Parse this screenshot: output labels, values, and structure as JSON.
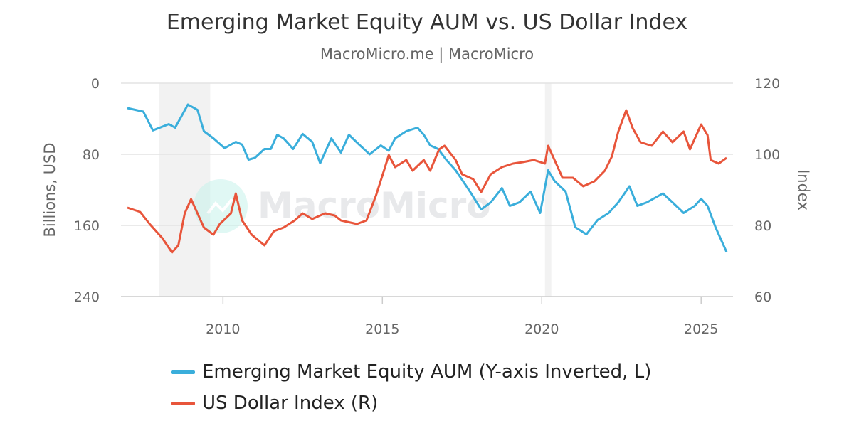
{
  "chart_data": {
    "type": "line",
    "title": "Emerging Market Equity AUM vs. US Dollar Index",
    "subtitle": "MacroMicro.me | MacroMicro",
    "watermark": "MacroMicro",
    "x_ticks": [
      "2010",
      "2015",
      "2020",
      "2025"
    ],
    "x_range": [
      2006.8,
      2026.0
    ],
    "y_left": {
      "label": "Billions, USD",
      "ticks": [
        "0",
        "80",
        "160",
        "240"
      ],
      "range": [
        0,
        240
      ],
      "inverted": true
    },
    "y_right": {
      "label": "Index",
      "ticks": [
        "120",
        "100",
        "80",
        "60"
      ],
      "range": [
        60,
        120
      ]
    },
    "grid": true,
    "legend_position": "bottom",
    "recessions": [
      [
        2008.0,
        2009.6
      ],
      [
        2020.1,
        2020.3
      ]
    ],
    "series": [
      {
        "name": "Emerging Market Equity AUM (Y-axis Inverted, L)",
        "axis": "left",
        "color": "#3aaedb",
        "x": [
          2007.0,
          2007.5,
          2007.8,
          2008.3,
          2008.5,
          2008.9,
          2009.2,
          2009.4,
          2009.7,
          2010.05,
          2010.4,
          2010.6,
          2010.8,
          2011.0,
          2011.3,
          2011.5,
          2011.7,
          2011.9,
          2012.2,
          2012.5,
          2012.8,
          2013.05,
          2013.4,
          2013.7,
          2013.95,
          2014.3,
          2014.6,
          2014.95,
          2015.2,
          2015.4,
          2015.75,
          2016.1,
          2016.3,
          2016.5,
          2016.75,
          2017.0,
          2017.3,
          2017.75,
          2018.1,
          2018.4,
          2018.75,
          2019.0,
          2019.3,
          2019.65,
          2019.95,
          2020.2,
          2020.4,
          2020.75,
          2021.05,
          2021.4,
          2021.75,
          2022.1,
          2022.4,
          2022.75,
          2023.0,
          2023.3,
          2023.8,
          2024.1,
          2024.45,
          2024.8,
          2025.0,
          2025.2,
          2025.45,
          2025.65,
          2025.8
        ],
        "y": [
          28,
          32,
          53,
          46,
          50,
          24,
          30,
          54,
          62,
          73,
          66,
          69,
          86,
          84,
          74,
          74,
          58,
          62,
          74,
          57,
          66,
          90,
          62,
          78,
          58,
          70,
          80,
          70,
          76,
          62,
          54,
          50,
          58,
          70,
          74,
          86,
          98,
          122,
          142,
          134,
          118,
          138,
          134,
          122,
          146,
          98,
          110,
          122,
          162,
          170,
          154,
          146,
          134,
          116,
          138,
          134,
          124,
          134,
          146,
          138,
          130,
          138,
          162,
          178,
          190
        ]
      },
      {
        "name": "US Dollar Index (R)",
        "axis": "right",
        "color": "#e8553b",
        "x": [
          2007.0,
          2007.4,
          2007.7,
          2008.1,
          2008.4,
          2008.6,
          2008.8,
          2009.0,
          2009.2,
          2009.4,
          2009.7,
          2009.9,
          2010.25,
          2010.4,
          2010.6,
          2010.9,
          2011.3,
          2011.6,
          2011.9,
          2012.25,
          2012.5,
          2012.8,
          2013.2,
          2013.5,
          2013.7,
          2014.2,
          2014.5,
          2014.8,
          2015.05,
          2015.2,
          2015.4,
          2015.75,
          2015.95,
          2016.3,
          2016.5,
          2016.78,
          2016.95,
          2017.3,
          2017.5,
          2017.85,
          2018.1,
          2018.4,
          2018.75,
          2019.1,
          2019.4,
          2019.75,
          2020.1,
          2020.2,
          2020.4,
          2020.65,
          2020.98,
          2021.3,
          2021.65,
          2021.98,
          2022.2,
          2022.4,
          2022.65,
          2022.85,
          2023.1,
          2023.45,
          2023.8,
          2024.1,
          2024.45,
          2024.65,
          2025.0,
          2025.2,
          2025.3,
          2025.55,
          2025.8
        ],
        "y": [
          85.0,
          83.8,
          80.4,
          76.4,
          72.4,
          74.4,
          83.4,
          87.4,
          83.4,
          79.4,
          77.4,
          80.4,
          83.4,
          89.0,
          81.4,
          77.4,
          74.4,
          78.4,
          79.4,
          81.4,
          83.4,
          81.8,
          83.4,
          82.8,
          81.4,
          80.4,
          81.4,
          88.4,
          95.4,
          99.8,
          96.4,
          98.4,
          95.4,
          98.4,
          95.4,
          101.4,
          102.4,
          98.4,
          94.4,
          93.0,
          89.4,
          94.4,
          96.4,
          97.4,
          97.8,
          98.4,
          97.4,
          102.4,
          98.4,
          93.4,
          93.4,
          91.0,
          92.4,
          95.4,
          99.4,
          106.4,
          112.4,
          107.4,
          103.4,
          102.4,
          106.4,
          103.4,
          106.4,
          101.4,
          108.4,
          105.4,
          98.4,
          97.4,
          99.0
        ]
      }
    ]
  }
}
